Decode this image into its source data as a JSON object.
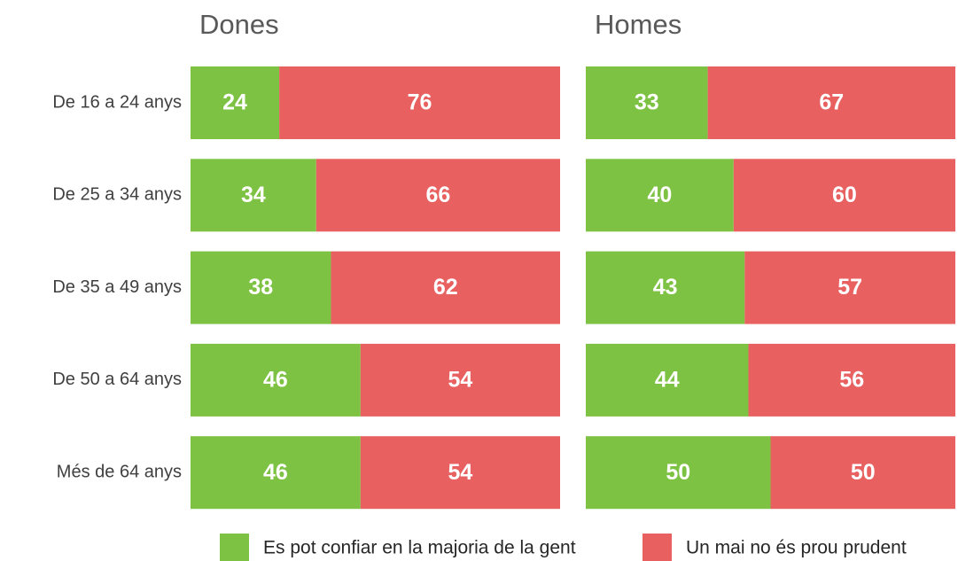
{
  "chart_data": {
    "type": "bar",
    "stacked": true,
    "orientation": "horizontal",
    "categories": [
      "De 16 a 24 anys",
      "De 25 a 34 anys",
      "De 35 a 49 anys",
      "De 50 a 64 anys",
      "Més de 64 anys"
    ],
    "series": [
      {
        "name": "Es pot confiar en la majoria de la gent",
        "color": "#7dc242"
      },
      {
        "name": "Un mai no és prou prudent",
        "color": "#e86060"
      }
    ],
    "xlim": [
      0,
      100
    ],
    "panels": [
      {
        "title": "Dones",
        "series": [
          {
            "values": [
              24,
              34,
              38,
              46,
              46
            ]
          },
          {
            "values": [
              76,
              66,
              62,
              54,
              54
            ]
          }
        ]
      },
      {
        "title": "Homes",
        "series": [
          {
            "values": [
              33,
              40,
              43,
              44,
              50
            ]
          },
          {
            "values": [
              67,
              60,
              57,
              56,
              50
            ]
          }
        ]
      }
    ]
  }
}
